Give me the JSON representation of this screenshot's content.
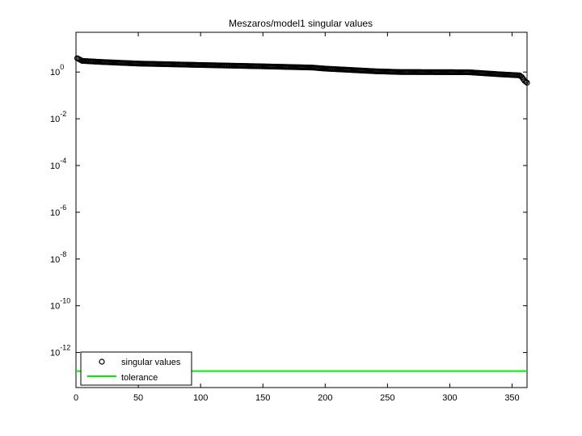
{
  "chart_data": {
    "type": "scatter",
    "title": "Meszaros/model1 singular values",
    "xlabel": "",
    "ylabel": "",
    "xlim": [
      0,
      362
    ],
    "ylim_log10": [
      -13.5,
      1.7
    ],
    "yscale": "log",
    "grid": false,
    "legend_position": "bottom-left",
    "x_ticks": [
      0,
      50,
      100,
      150,
      200,
      250,
      300,
      350
    ],
    "y_ticks": [
      {
        "exp": 0,
        "base": "10",
        "sup": "0"
      },
      {
        "exp": -2,
        "base": "10",
        "sup": "-2"
      },
      {
        "exp": -4,
        "base": "10",
        "sup": "-4"
      },
      {
        "exp": -6,
        "base": "10",
        "sup": "-6"
      },
      {
        "exp": -8,
        "base": "10",
        "sup": "-8"
      },
      {
        "exp": -10,
        "base": "10",
        "sup": "-10"
      },
      {
        "exp": -12,
        "base": "10",
        "sup": "-12"
      }
    ],
    "series": [
      {
        "name": "singular values",
        "marker": "circle",
        "color": "#000000",
        "n": 362,
        "profile": [
          [
            1,
            3.9
          ],
          [
            5,
            3.0
          ],
          [
            20,
            2.7
          ],
          [
            50,
            2.3
          ],
          [
            100,
            2.0
          ],
          [
            150,
            1.75
          ],
          [
            190,
            1.55
          ],
          [
            200,
            1.4
          ],
          [
            240,
            1.08
          ],
          [
            260,
            1.0
          ],
          [
            315,
            0.98
          ],
          [
            340,
            0.8
          ],
          [
            356,
            0.72
          ],
          [
            358,
            0.6
          ],
          [
            360,
            0.42
          ],
          [
            362,
            0.35
          ]
        ]
      },
      {
        "name": "tolerance",
        "marker": "line",
        "color": "#00ee00",
        "value": 1.6e-13
      }
    ]
  }
}
